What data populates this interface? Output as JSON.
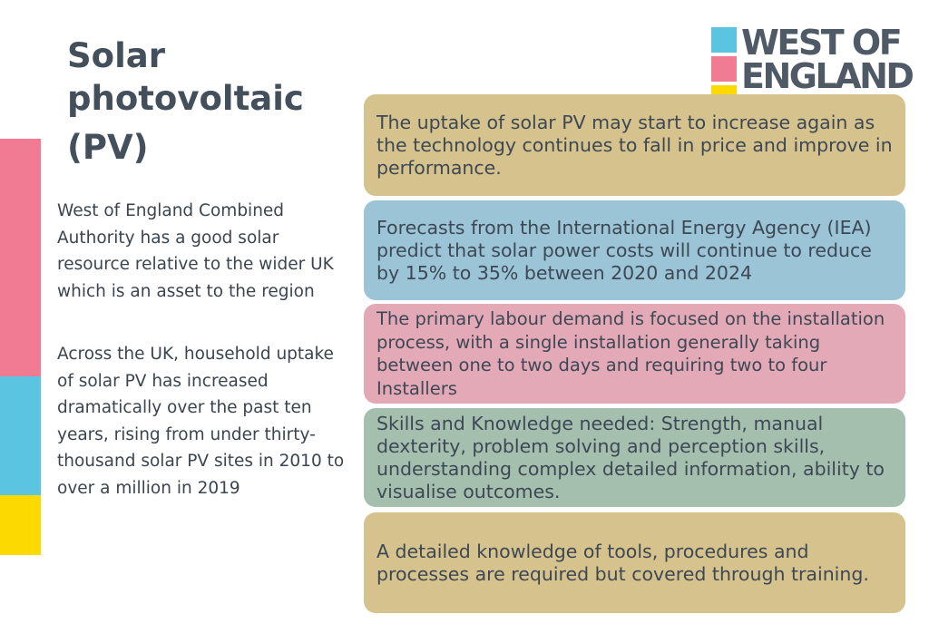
{
  "title": {
    "line1": "Solar",
    "line2": "photovoltaic",
    "line3": "(PV)"
  },
  "logo": {
    "line1": "WEST OF",
    "line2": "ENGLAND"
  },
  "left_text": {
    "para1": "West of England Combined Authority has a good solar resource relative to the wider UK which is an asset to the region",
    "para2": "Across the UK, household uptake of solar PV has increased dramatically over the past ten years, rising from under thirty-thousand solar PV sites in 2010 to over a million in 2019"
  },
  "cards": [
    {
      "text": "The uptake of solar PV may start to increase again as the technology continues to fall in price and improve in performance."
    },
    {
      "text": "Forecasts from the International Energy Agency (IEA) predict that solar power costs will continue to reduce by 15% to 35% between 2020 and 2024"
    },
    {
      "text": "The primary labour demand is focused on the installation process, with a single installation generally taking between one to two days and requiring two to four Installers"
    },
    {
      "text": "Skills and Knowledge needed: Strength, manual dexterity, problem solving and perception skills, understanding complex detailed information, ability to visualise outcomes."
    },
    {
      "text": "A detailed knowledge of tools, procedures and processes are required but covered through training."
    }
  ],
  "colors": {
    "pink": "#f07b93",
    "blue": "#5bc5e1",
    "yellow": "#fcd900",
    "card_gold": "#d5c28c",
    "card_blue": "#9bc4d6",
    "card_pink": "#e3a9b6",
    "card_green": "#a5bfae",
    "text_dark": "#3d4854",
    "logo_text": "#4f5a66"
  }
}
